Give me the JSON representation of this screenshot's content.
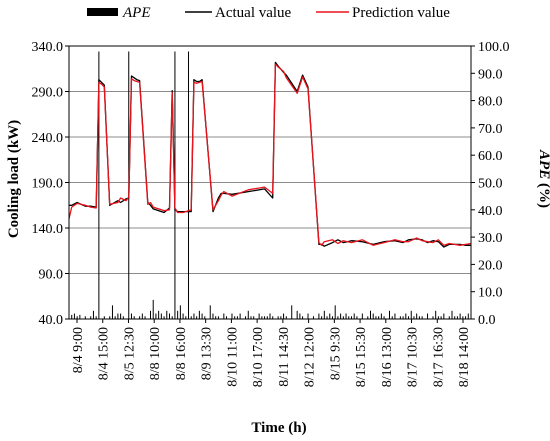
{
  "chart_data": {
    "type": "line",
    "title": "",
    "xlabel": "Time (h)",
    "ylabel": "Cooling load (kW)",
    "ylabel_right_italic": "APE",
    "ylabel_right_suffix": " (%)",
    "ylim": [
      40,
      340
    ],
    "ylim_right": [
      0,
      100
    ],
    "yticks": [
      "340.0",
      "290.0",
      "240.0",
      "190.0",
      "140.0",
      "90.0",
      "40.0"
    ],
    "yticks_right": [
      "100.0",
      "90.0",
      "80.0",
      "70.0",
      "60.0",
      "50.0",
      "40.0",
      "30.0",
      "20.0",
      "10.0",
      "0.0"
    ],
    "grid": true,
    "legend_position": "top",
    "x_tick_labels": [
      "8/4 9:00",
      "8/4 15:00",
      "8/5 12:30",
      "8/8 10:00",
      "8/8 16:00",
      "8/9 13:30",
      "8/10 11:00",
      "8/10 17:00",
      "8/11 14:30",
      "8/12 12:00",
      "8/15 9:30",
      "8/15 15:30",
      "8/16 13:00",
      "8/17 10:30",
      "8/17 16:30",
      "8/18 14:00"
    ],
    "x_range": [
      0,
      148
    ],
    "series": [
      {
        "name": "APE",
        "type": "bar",
        "axis": "right",
        "color": "#000000",
        "x": [
          1,
          2,
          3,
          4,
          6,
          8,
          9,
          10,
          11,
          13,
          15,
          16,
          17,
          18,
          19,
          20,
          22,
          23,
          24,
          26,
          27,
          28,
          30,
          31,
          32,
          33,
          34,
          35,
          36,
          37,
          38,
          39,
          40,
          41,
          42,
          43,
          44,
          45,
          46,
          47,
          48,
          49,
          50,
          52,
          53,
          54,
          55,
          57,
          58,
          60,
          61,
          62,
          63,
          65,
          66,
          67,
          68,
          70,
          71,
          72,
          73,
          74,
          75,
          77,
          78,
          79,
          80,
          82,
          84,
          85,
          86,
          88,
          90,
          92,
          93,
          94,
          95,
          96,
          97,
          98,
          99,
          100,
          101,
          102,
          103,
          104,
          105,
          106,
          108,
          110,
          111,
          112,
          113,
          114,
          115,
          116,
          118,
          119,
          120,
          122,
          123,
          124,
          125,
          126,
          127,
          128,
          129,
          130,
          132,
          134,
          135,
          136,
          137,
          138,
          140,
          141,
          142,
          143,
          144,
          145,
          146,
          147
        ],
        "values": [
          1.5,
          2,
          1,
          1.5,
          1,
          1,
          3,
          1,
          98,
          1,
          1,
          5,
          1,
          2,
          2,
          1,
          98,
          2,
          1,
          1,
          2,
          1,
          3,
          7,
          2,
          3,
          2,
          1,
          3,
          2,
          1,
          98,
          3,
          5,
          2,
          1,
          98,
          1,
          2,
          1,
          3,
          2,
          1,
          5,
          2,
          1,
          1,
          2,
          1,
          2,
          1,
          1,
          2,
          1,
          3,
          1,
          1,
          2,
          1,
          1,
          1,
          2,
          1,
          1,
          1,
          2,
          1,
          5,
          3,
          2,
          1,
          2,
          1,
          2,
          1,
          3,
          1,
          2,
          1,
          5,
          1,
          2,
          1,
          2,
          1,
          1,
          2,
          1,
          2,
          1,
          3,
          2,
          1,
          1,
          2,
          1,
          3,
          1,
          2,
          1,
          1,
          2,
          1,
          3,
          1,
          2,
          1,
          1,
          2,
          1,
          3,
          1,
          1,
          2,
          1,
          3,
          1,
          1,
          2,
          1,
          1,
          2
        ]
      },
      {
        "name": "Actual value",
        "type": "line",
        "axis": "left",
        "color": "#000000",
        "x": [
          0,
          1,
          3,
          6,
          8,
          10,
          11,
          12,
          13,
          15,
          18,
          19,
          21,
          22,
          23,
          24,
          25,
          26,
          29,
          30,
          31,
          32,
          34,
          35,
          37,
          38,
          39,
          40,
          42,
          45,
          46,
          47,
          48,
          49,
          53,
          55,
          56,
          57,
          60,
          66,
          72,
          75,
          76,
          77,
          79,
          80,
          84,
          86,
          88,
          92,
          93,
          94,
          97,
          99,
          101,
          104,
          108,
          112,
          116,
          120,
          123,
          125,
          128,
          130,
          132,
          134,
          136,
          138,
          140,
          144,
          146,
          148
        ],
        "values": [
          165,
          165,
          168,
          164,
          164,
          163,
          303,
          300,
          297,
          165,
          170,
          168,
          172,
          173,
          307,
          305,
          303,
          302,
          168,
          165,
          161,
          160,
          158,
          157,
          162,
          291,
          160,
          158,
          158,
          158,
          303,
          301,
          301,
          303,
          158,
          173,
          178,
          178,
          177,
          180,
          183,
          173,
          322,
          318,
          311,
          308,
          290,
          308,
          295,
          122,
          122,
          120,
          124,
          127,
          124,
          126,
          125,
          122,
          125,
          126,
          124,
          127,
          128,
          127,
          124,
          126,
          125,
          119,
          122,
          122,
          121,
          121
        ]
      },
      {
        "name": "Prediction value",
        "type": "line",
        "axis": "left",
        "color": "#e8141b",
        "x": [
          0,
          1,
          3,
          6,
          8,
          10,
          11,
          12,
          13,
          15,
          18,
          19,
          21,
          22,
          23,
          24,
          25,
          26,
          29,
          30,
          31,
          32,
          34,
          35,
          37,
          38,
          39,
          40,
          42,
          45,
          46,
          47,
          48,
          49,
          53,
          55,
          56,
          57,
          60,
          66,
          72,
          75,
          76,
          77,
          79,
          80,
          84,
          86,
          88,
          92,
          93,
          94,
          97,
          99,
          101,
          104,
          108,
          112,
          116,
          120,
          123,
          125,
          128,
          130,
          132,
          134,
          136,
          138,
          140,
          144,
          146,
          148
        ],
        "values": [
          150,
          163,
          167,
          165,
          163,
          162,
          300,
          298,
          295,
          166,
          168,
          173,
          170,
          174,
          304,
          302,
          301,
          300,
          166,
          168,
          163,
          162,
          160,
          159,
          160,
          289,
          162,
          157,
          157,
          160,
          300,
          299,
          300,
          301,
          160,
          170,
          176,
          180,
          175,
          182,
          185,
          178,
          320,
          317,
          312,
          305,
          288,
          306,
          293,
          124,
          121,
          125,
          127,
          123,
          126,
          124,
          127,
          121,
          124,
          127,
          125,
          125,
          129,
          126,
          125,
          124,
          127,
          121,
          123,
          121,
          122,
          123
        ]
      }
    ]
  }
}
